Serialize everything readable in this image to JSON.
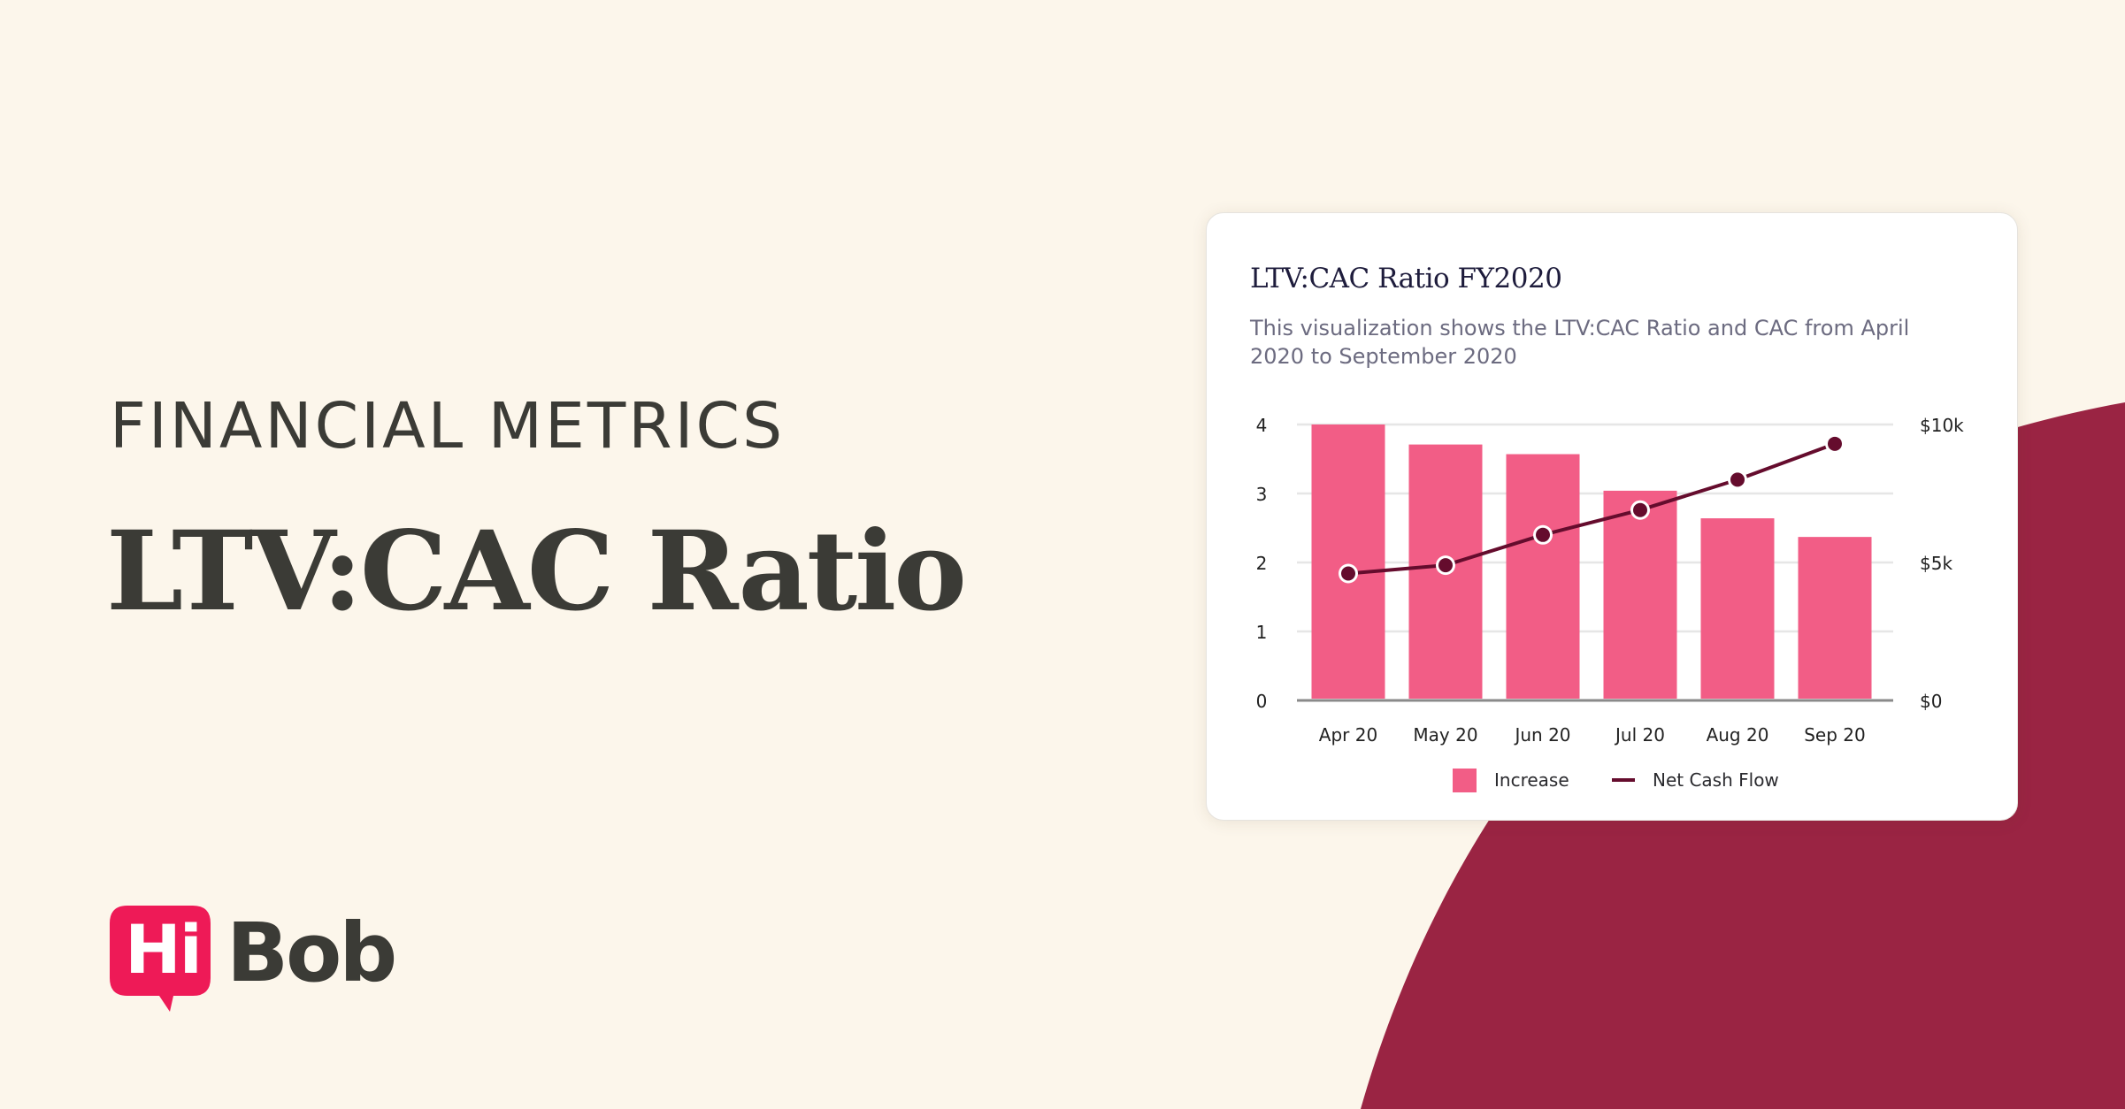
{
  "colors": {
    "background": "#fcf6eb",
    "accent_shape": "#9a2443",
    "text_dark": "#3b3b36",
    "bar": "#f25d86",
    "line": "#650c2d",
    "logo_pink": "#ee1a57",
    "gridline": "#e6e6e6",
    "axis": "#8a8a8a"
  },
  "hero": {
    "eyebrow": "FINANCIAL METRICS",
    "headline": "LTV:CAC Ratio"
  },
  "logo": {
    "hi": "Hi",
    "bob": "Bob",
    "icon": "speech-bubble-icon"
  },
  "card": {
    "title": "LTV:CAC Ratio FY2020",
    "subtitle": "This visualization shows the LTV:CAC Ratio and CAC from April 2020 to September 2020"
  },
  "chart_data": {
    "type": "bar",
    "title": "LTV:CAC Ratio FY2020",
    "subtitle": "This visualization shows the LTV:CAC Ratio and CAC from April 2020 to September 2020",
    "categories": [
      "Apr 20",
      "May 20",
      "Jun 20",
      "Jul 20",
      "Aug 20",
      "Sep 20"
    ],
    "series": [
      {
        "name": "Increase",
        "type": "bar",
        "axis": "left",
        "values": [
          4.0,
          3.71,
          3.57,
          3.04,
          2.64,
          2.37
        ]
      },
      {
        "name": "Net Cash Flow",
        "type": "line",
        "axis": "right",
        "unit": "$k",
        "values": [
          4.6,
          4.9,
          6.0,
          6.9,
          8.0,
          9.3
        ]
      }
    ],
    "y_left": {
      "ticks": [
        "0",
        "1",
        "2",
        "3",
        "4"
      ],
      "ylim": [
        0,
        4
      ]
    },
    "y_right": {
      "ticks": [
        "$0",
        "$5k",
        "$10k"
      ],
      "ylim": [
        0,
        10
      ]
    },
    "xlabel": "",
    "ylabel": "",
    "grid": true,
    "legend": {
      "position": "bottom",
      "entries": [
        "Increase",
        "Net Cash Flow"
      ]
    }
  }
}
